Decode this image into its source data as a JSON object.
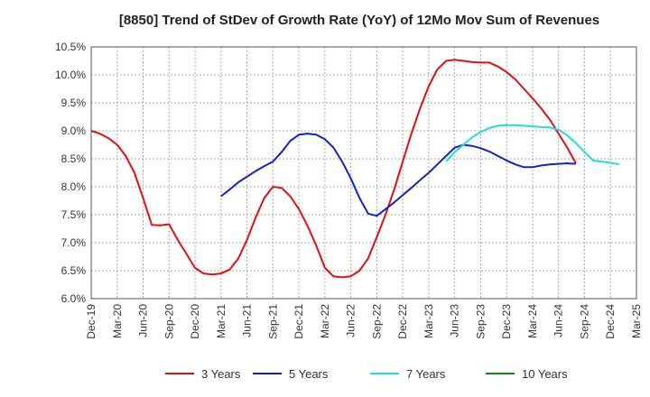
{
  "chart_data": {
    "type": "line",
    "title": "[8850]  Trend of StDev of Growth Rate (YoY) of 12Mo Mov Sum of Revenues",
    "xlabel": "",
    "ylabel": "",
    "ylim": [
      6.0,
      10.5
    ],
    "y_ticks": [
      "6.0%",
      "6.5%",
      "7.0%",
      "7.5%",
      "8.0%",
      "8.5%",
      "9.0%",
      "9.5%",
      "10.0%",
      "10.5%"
    ],
    "x_tick_labels": [
      "Dec-19",
      "Mar-20",
      "Jun-20",
      "Sep-20",
      "Dec-20",
      "Mar-21",
      "Jun-21",
      "Sep-21",
      "Dec-21",
      "Mar-22",
      "Jun-22",
      "Sep-22",
      "Dec-22",
      "Mar-23",
      "Jun-23",
      "Sep-23",
      "Dec-23",
      "Mar-24",
      "Jun-24",
      "Sep-24",
      "Dec-24",
      "Mar-25"
    ],
    "grid": true,
    "legend_position": "bottom",
    "series": [
      {
        "name": "3 Years",
        "color": "#dd1111",
        "start_index": 0,
        "values": [
          9.0,
          8.95,
          8.87,
          8.75,
          8.55,
          8.25,
          7.8,
          7.32,
          7.31,
          7.33,
          7.05,
          6.8,
          6.55,
          6.45,
          6.43,
          6.45,
          6.52,
          6.72,
          7.05,
          7.45,
          7.8,
          8.0,
          7.98,
          7.83,
          7.6,
          7.3,
          6.95,
          6.55,
          6.4,
          6.38,
          6.4,
          6.5,
          6.72,
          7.1,
          7.5,
          7.95,
          8.45,
          8.95,
          9.4,
          9.8,
          10.1,
          10.25,
          10.27,
          10.25,
          10.23,
          10.22,
          10.22,
          10.15,
          10.05,
          9.92,
          9.75,
          9.58,
          9.4,
          9.2,
          8.95,
          8.7,
          8.42
        ]
      },
      {
        "name": "5 Years",
        "color": "#1122cc",
        "start_index": 15,
        "values": [
          7.83,
          7.95,
          8.08,
          8.18,
          8.28,
          8.37,
          8.45,
          8.62,
          8.82,
          8.93,
          8.95,
          8.93,
          8.85,
          8.7,
          8.45,
          8.15,
          7.8,
          7.52,
          7.48,
          7.6,
          7.72,
          7.85,
          7.98,
          8.12,
          8.25,
          8.4,
          8.55,
          8.7,
          8.75,
          8.73,
          8.69,
          8.63,
          8.55,
          8.47,
          8.4,
          8.35,
          8.35,
          8.38,
          8.4,
          8.41,
          8.42,
          8.41
        ]
      },
      {
        "name": "7 Years",
        "color": "#22dddd",
        "start_index": 41,
        "values": [
          8.45,
          8.62,
          8.75,
          8.88,
          8.98,
          9.05,
          9.09,
          9.1,
          9.1,
          9.09,
          9.08,
          9.07,
          9.06,
          9.02,
          8.92,
          8.78,
          8.62,
          8.47,
          8.45,
          8.43,
          8.4
        ]
      },
      {
        "name": "10 Years",
        "color": "#118811",
        "start_index": 0,
        "values": []
      }
    ]
  }
}
